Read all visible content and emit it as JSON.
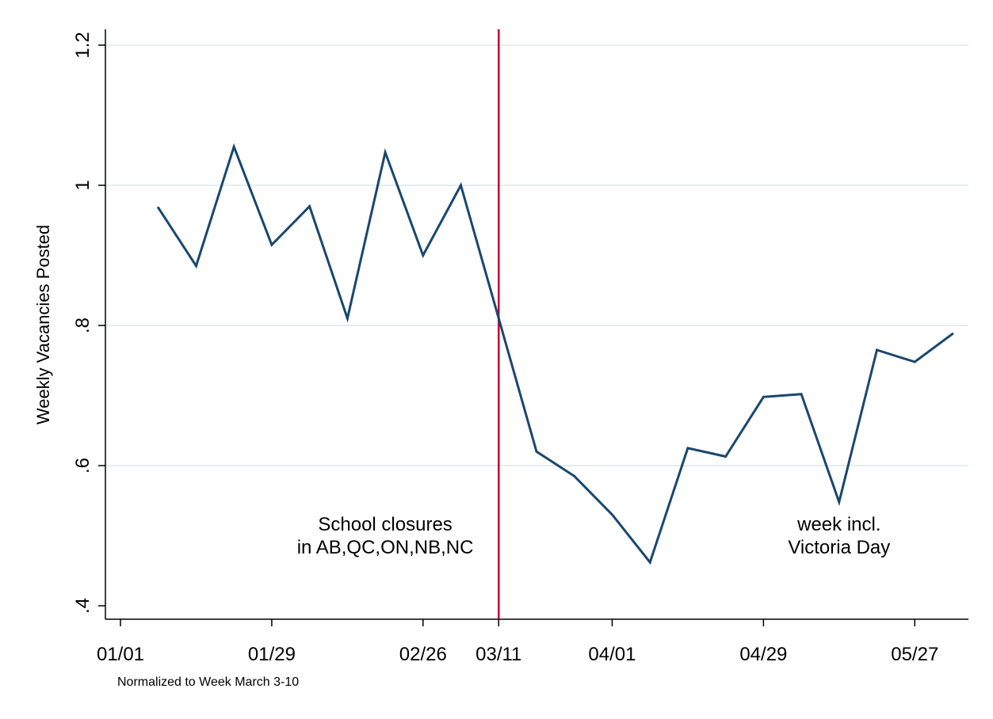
{
  "chart_data": {
    "type": "line",
    "ylabel": "Weekly Vacancies Posted",
    "note": "Normalized to Week March 3-10",
    "ylim": [
      0.4,
      1.2
    ],
    "yticks": [
      ".4",
      ".6",
      ".8",
      "1",
      "1.2"
    ],
    "ytick_values": [
      0.4,
      0.6,
      0.8,
      1.0,
      1.2
    ],
    "grid": true,
    "xlim": [
      "2020-01-01",
      "2020-06-03"
    ],
    "xticks": [
      {
        "label": "01/01",
        "date": "2020-01-01"
      },
      {
        "label": "01/29",
        "date": "2020-01-29"
      },
      {
        "label": "02/26",
        "date": "2020-02-26"
      },
      {
        "label": "03/11",
        "date": "2020-03-11"
      },
      {
        "label": "04/01",
        "date": "2020-04-01"
      },
      {
        "label": "04/29",
        "date": "2020-04-29"
      },
      {
        "label": "05/27",
        "date": "2020-05-27"
      }
    ],
    "series": [
      {
        "color": "#1a476f",
        "x": [
          "2020-01-08",
          "2020-01-15",
          "2020-01-22",
          "2020-01-29",
          "2020-02-05",
          "2020-02-12",
          "2020-02-19",
          "2020-02-26",
          "2020-03-04",
          "2020-03-11",
          "2020-03-18",
          "2020-03-25",
          "2020-04-01",
          "2020-04-08",
          "2020-04-15",
          "2020-04-22",
          "2020-04-29",
          "2020-05-06",
          "2020-05-13",
          "2020-05-20",
          "2020-05-27",
          "2020-06-03"
        ],
        "y": [
          0.968,
          0.885,
          1.055,
          0.915,
          0.97,
          0.81,
          1.047,
          0.9,
          1.0,
          0.81,
          0.62,
          0.585,
          0.53,
          0.462,
          0.625,
          0.613,
          0.698,
          0.702,
          0.548,
          0.765,
          0.748,
          0.788
        ]
      }
    ],
    "vline": {
      "date": "2020-03-11",
      "color": "#c10534"
    },
    "annotations": [
      {
        "lines": [
          "School closures",
          "in AB,QC,ON,NB,NC"
        ],
        "anchor_date": "2020-02-19",
        "anchor_y": 0.485
      },
      {
        "lines": [
          "week incl.",
          "Victoria Day"
        ],
        "anchor_date": "2020-05-13",
        "anchor_y": 0.485
      }
    ],
    "colors": {
      "line": "#1a476f",
      "vline": "#c10534",
      "grid": "#e4eeee",
      "axis": "#000000"
    }
  }
}
